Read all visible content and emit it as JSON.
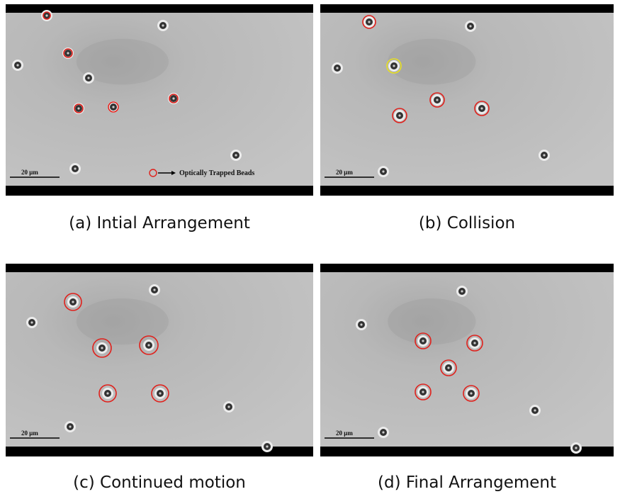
{
  "panels": [
    {
      "caption": "(a) Intial Arrangement",
      "scale_label": "20 μm",
      "legend": "Optically Trapped Beads"
    },
    {
      "caption": "(b) Collision",
      "scale_label": "20 μm"
    },
    {
      "caption": "(c) Continued motion",
      "scale_label": "20 μm"
    },
    {
      "caption": "(d) Final Arrangement",
      "scale_label": "20 μm"
    }
  ]
}
